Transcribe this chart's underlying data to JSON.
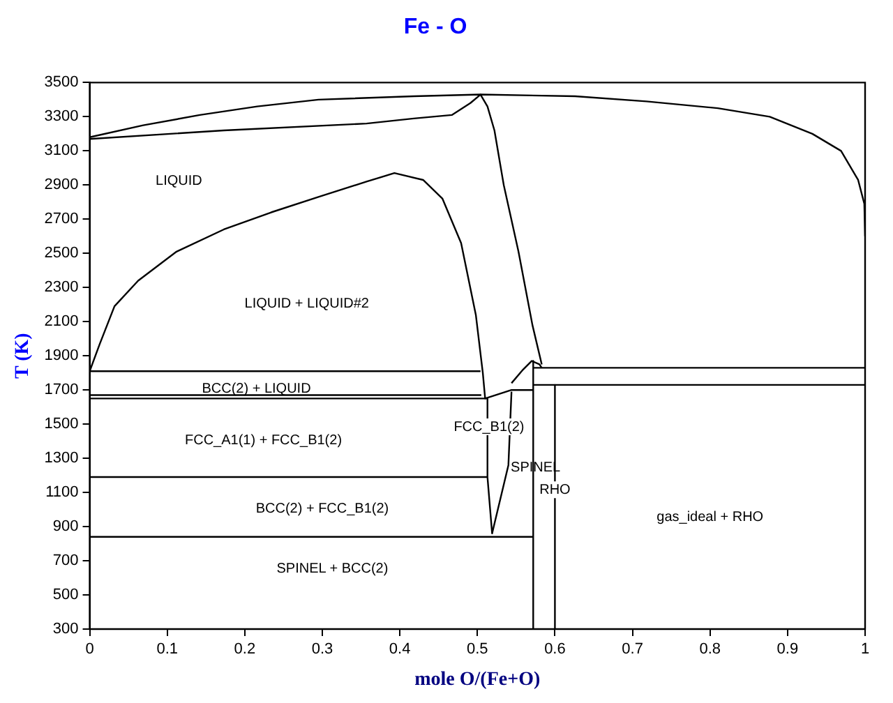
{
  "chart_data": {
    "type": "line",
    "title": "Fe - O",
    "xlabel": "mole O/(Fe+O)",
    "ylabel": "T (K)",
    "xlim": [
      0,
      1
    ],
    "ylim": [
      300,
      3500
    ],
    "xticks": [
      0,
      0.1,
      0.2,
      0.3,
      0.4,
      0.5,
      0.6,
      0.7,
      0.8,
      0.9,
      1
    ],
    "yticks": [
      300,
      500,
      700,
      900,
      1100,
      1300,
      1500,
      1700,
      1900,
      2100,
      2300,
      2500,
      2700,
      2900,
      3100,
      3300,
      3500
    ],
    "grid": false,
    "legend": false,
    "marker": "none",
    "line_style": "solid",
    "series": [
      {
        "color": "#000000",
        "x": [
          0,
          0.069,
          0.142,
          0.216,
          0.295,
          0.418,
          0.504,
          0.626,
          0.718,
          0.81,
          0.877,
          0.932,
          0.969,
          0.991,
          0.999,
          1
        ],
        "values": [
          3180,
          3250,
          3310,
          3360,
          3400,
          3420,
          3430,
          3420,
          3390,
          3350,
          3300,
          3200,
          3100,
          2930,
          2790,
          2600
        ]
      },
      {
        "color": "#000000",
        "x": [
          0,
          0.173,
          0.357,
          0.418,
          0.467,
          0.491,
          0.504,
          0.513,
          0.522,
          0.534,
          0.553,
          0.571,
          0.583
        ],
        "values": [
          3170,
          3220,
          3260,
          3290,
          3310,
          3380,
          3430,
          3360,
          3220,
          2900,
          2510,
          2080,
          1850
        ]
      },
      {
        "color": "#000000",
        "x": [
          0,
          0.013,
          0.032,
          0.0625,
          0.112,
          0.173,
          0.234,
          0.295,
          0.357,
          0.393,
          0.43,
          0.455,
          0.479,
          0.498,
          0.507,
          0.51,
          0.544,
          0.572
        ],
        "values": [
          1810,
          1970,
          2190,
          2340,
          2510,
          2640,
          2740,
          2830,
          2920,
          2970,
          2930,
          2820,
          2560,
          2140,
          1800,
          1650,
          1700,
          1700
        ]
      },
      {
        "color": "#000000",
        "x": [
          0,
          0.504
        ],
        "values": [
          1810,
          1810
        ]
      },
      {
        "color": "#000000",
        "x": [
          0,
          0.505
        ],
        "values": [
          1670,
          1670
        ]
      },
      {
        "color": "#000000",
        "x": [
          0,
          0.513
        ],
        "values": [
          1650,
          1650
        ]
      },
      {
        "color": "#000000",
        "x": [
          0,
          0.513
        ],
        "values": [
          1190,
          1190
        ]
      },
      {
        "color": "#000000",
        "x": [
          0,
          0.572
        ],
        "values": [
          840,
          840
        ]
      },
      {
        "color": "#000000",
        "x": [
          0.513,
          0.513,
          0.519,
          0.54,
          0.544
        ],
        "values": [
          1650,
          1190,
          860,
          1260,
          1690
        ]
      },
      {
        "color": "#000000",
        "x": [
          0.544,
          0.559,
          0.57,
          0.58,
          0.583
        ],
        "values": [
          1740,
          1820,
          1870,
          1850,
          1830
        ]
      },
      {
        "color": "#000000",
        "x": [
          0.572,
          0.572
        ],
        "values": [
          1870,
          300
        ]
      },
      {
        "color": "#000000",
        "x": [
          0.6,
          0.6
        ],
        "values": [
          1730,
          300
        ]
      },
      {
        "color": "#000000",
        "x": [
          0.572,
          1
        ],
        "values": [
          1830,
          1830
        ]
      },
      {
        "color": "#000000",
        "x": [
          0.572,
          1
        ],
        "values": [
          1730,
          1730
        ]
      }
    ],
    "annotations": [
      "LIQUID",
      "LIQUID + LIQUID#2",
      "BCC(2) + LIQUID",
      "FCC_A1(1) + FCC_B1(2)",
      "FCC_B1(2)",
      "SPINEL",
      "RHO",
      "BCC(2) + FCC_B1(2)",
      "gas_ideal + RHO",
      "SPINEL + BCC(2)"
    ]
  }
}
